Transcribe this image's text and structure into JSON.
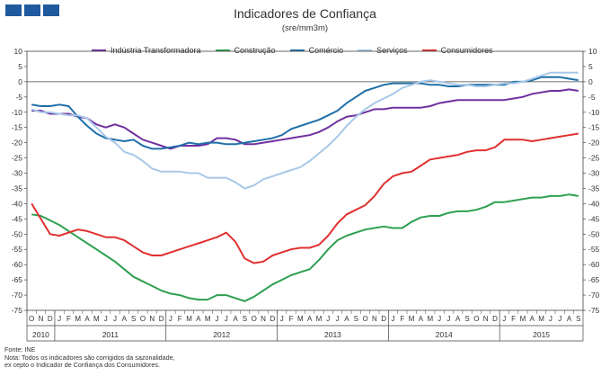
{
  "header": {
    "title": "Indicadores de Confiança",
    "subtitle": "(sre/mm3m)",
    "brand_colors": [
      "#1f5a9e",
      "#1f5a9e",
      "#1f5a9e"
    ]
  },
  "footer": {
    "source": "Fonte: INE",
    "note_line1": "Nota: Todos os indicadores são corrigidos da sazonalidade,",
    "note_line2": "ex cepto o Indicador de Confiança dos Consumidores."
  },
  "chart_data": {
    "type": "line",
    "title": "Indicadores de Confiança",
    "subtitle": "(sre/mm3m)",
    "ylim": [
      -75,
      10
    ],
    "yticks": [
      10,
      5,
      0,
      -5,
      -10,
      -15,
      -20,
      -25,
      -30,
      -35,
      -40,
      -45,
      -50,
      -55,
      -60,
      -65,
      -70,
      -75
    ],
    "y_axis_both_sides": true,
    "grid": false,
    "legend_position": "top",
    "months": [
      "O",
      "N",
      "D",
      "J",
      "F",
      "M",
      "A",
      "M",
      "J",
      "J",
      "A",
      "S",
      "O",
      "N",
      "D",
      "J",
      "F",
      "M",
      "A",
      "M",
      "J",
      "J",
      "A",
      "S",
      "O",
      "N",
      "D",
      "J",
      "F",
      "M",
      "A",
      "M",
      "J",
      "J",
      "A",
      "S",
      "O",
      "N",
      "D",
      "J",
      "F",
      "M",
      "A",
      "M",
      "J",
      "J",
      "A",
      "S",
      "O",
      "N",
      "D",
      "J",
      "F",
      "M",
      "A",
      "M",
      "J",
      "J",
      "A",
      "S"
    ],
    "years": [
      {
        "label": "2010",
        "start": 0,
        "end": 2
      },
      {
        "label": "2011",
        "start": 3,
        "end": 14
      },
      {
        "label": "2012",
        "start": 15,
        "end": 26
      },
      {
        "label": "2013",
        "start": 27,
        "end": 38
      },
      {
        "label": "2014",
        "start": 39,
        "end": 50
      },
      {
        "label": "2015",
        "start": 51,
        "end": 59
      }
    ],
    "series": [
      {
        "name": "Indústria Transformadora",
        "color": "#7030a0",
        "values": [
          -9.5,
          -9.5,
          -10.5,
          -10.5,
          -10.5,
          -11.5,
          -12,
          -14,
          -15,
          -14,
          -15,
          -17,
          -19,
          -20,
          -21,
          -22,
          -21,
          -21,
          -21,
          -20.5,
          -18.5,
          -18.5,
          -19,
          -20.5,
          -20.5,
          -20,
          -19.5,
          -19,
          -18.5,
          -18,
          -17.5,
          -16.5,
          -15,
          -13,
          -11.5,
          -11,
          -10,
          -9,
          -9,
          -8.5,
          -8.5,
          -8.5,
          -8.5,
          -8,
          -7,
          -6.5,
          -6,
          -6,
          -6,
          -6,
          -6,
          -6,
          -5.5,
          -5,
          -4,
          -3.5,
          -3,
          -3,
          -2.5,
          -3
        ]
      },
      {
        "name": "Construção",
        "color": "#2ea050",
        "values": [
          -43.5,
          -44,
          -45.5,
          -47,
          -49,
          -51,
          -53,
          -55,
          -57,
          -59,
          -61.5,
          -64,
          -65.5,
          -67,
          -68.5,
          -69.5,
          -70,
          -71,
          -71.5,
          -71.5,
          -70,
          -70,
          -71,
          -72,
          -70.5,
          -68.5,
          -66.5,
          -65,
          -63.5,
          -62.5,
          -61.5,
          -58.5,
          -55,
          -52,
          -50.5,
          -49.5,
          -48.5,
          -48,
          -47.5,
          -48,
          -48,
          -46,
          -44.5,
          -44,
          -44,
          -43,
          -42.5,
          -42.5,
          -42,
          -41,
          -39.5,
          -39.5,
          -39,
          -38.5,
          -38,
          -38,
          -37.5,
          -37.5,
          -37,
          -37.5
        ]
      },
      {
        "name": "Comércio",
        "color": "#1f6fa8",
        "values": [
          -7.5,
          -8,
          -8,
          -7.5,
          -8,
          -11.5,
          -14.5,
          -17,
          -18.5,
          -19,
          -19.5,
          -19,
          -21,
          -22,
          -22,
          -21.5,
          -21,
          -20,
          -20.5,
          -20,
          -20,
          -20.5,
          -20.5,
          -20,
          -19.5,
          -19,
          -18.5,
          -17.5,
          -15.5,
          -14.5,
          -13.5,
          -12.5,
          -11,
          -9.5,
          -7,
          -5,
          -3,
          -2,
          -1,
          -0.5,
          -0.5,
          -0.5,
          -0.5,
          -1,
          -1,
          -1.5,
          -1.5,
          -1,
          -1,
          -1,
          -1,
          -1,
          0,
          0,
          0.5,
          1.5,
          1.5,
          1.5,
          1,
          0.5
        ]
      },
      {
        "name": "Serviços",
        "color": "#a8c8e8",
        "values": [
          -9,
          -10,
          -10,
          -10.5,
          -11,
          -11,
          -12,
          -15,
          -18,
          -20,
          -23,
          -24,
          -26,
          -28.5,
          -29.5,
          -29.5,
          -29.5,
          -30,
          -30,
          -31.5,
          -31.5,
          -31.5,
          -33,
          -35,
          -34,
          -32,
          -31,
          -30,
          -29,
          -28,
          -26,
          -23.5,
          -21,
          -18,
          -14.5,
          -11.5,
          -9,
          -7,
          -5.5,
          -4,
          -2,
          -1,
          0,
          0.5,
          0,
          -0.5,
          -1,
          -1,
          -1.5,
          -1.5,
          -1,
          -0.5,
          -0.5,
          0,
          1,
          2,
          3,
          3,
          3,
          3
        ]
      },
      {
        "name": "Consumidores",
        "color": "#e03030",
        "values": [
          -40,
          -45,
          -50,
          -50.5,
          -49.5,
          -48.5,
          -49,
          -50,
          -51,
          -51,
          -52,
          -54,
          -56,
          -57,
          -57,
          -56,
          -55,
          -54,
          -53,
          -52,
          -51,
          -49.5,
          -52.5,
          -58,
          -59.5,
          -59,
          -57,
          -56,
          -55,
          -54.5,
          -54.5,
          -53.5,
          -50.5,
          -46.5,
          -43.5,
          -42,
          -40.5,
          -37.5,
          -33.5,
          -31,
          -30,
          -29.5,
          -27.5,
          -25.5,
          -25,
          -24.5,
          -24,
          -23,
          -22.5,
          -22.5,
          -21.5,
          -19,
          -19,
          -19,
          -19.5,
          -19,
          -18.5,
          -18,
          -17.5,
          -17
        ]
      }
    ]
  }
}
